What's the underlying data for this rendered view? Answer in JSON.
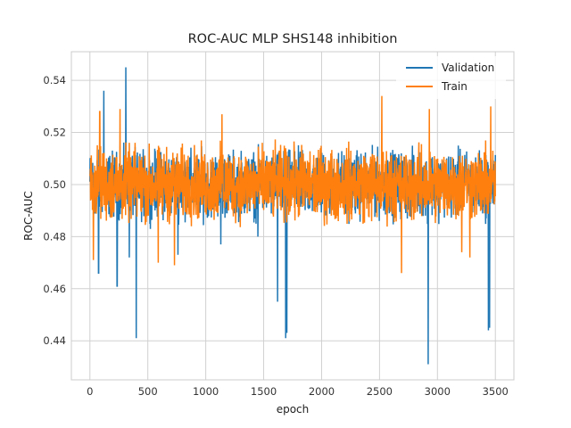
{
  "chart_data": {
    "type": "line",
    "title": "ROC-AUC MLP SHS148 inhibition",
    "xlabel": "epoch",
    "ylabel": "ROC-AUC",
    "xlim": [
      -160,
      3660
    ],
    "ylim": [
      0.425,
      0.551
    ],
    "x_ticks": [
      0,
      500,
      1000,
      1500,
      2000,
      2500,
      3000,
      3500
    ],
    "x_tick_labels": [
      "0",
      "500",
      "1000",
      "1500",
      "2000",
      "2500",
      "3000",
      "3500"
    ],
    "y_ticks": [
      0.44,
      0.46,
      0.48,
      0.5,
      0.52,
      0.54
    ],
    "y_tick_labels": [
      "0.44",
      "0.46",
      "0.48",
      "0.50",
      "0.52",
      "0.54"
    ],
    "grid": true,
    "legend_position": "top-right",
    "epochs": 3500,
    "series": [
      {
        "name": "Validation",
        "color": "#1f77b4",
        "x": [
          0,
          60,
          75,
          85,
          120,
          135,
          200,
          235,
          250,
          270,
          310,
          340,
          385,
          400,
          600,
          700,
          760,
          1000,
          1130,
          1300,
          1450,
          1600,
          1620,
          1640,
          1690,
          1700,
          1710,
          1800,
          2050,
          2200,
          2400,
          2600,
          2700,
          2850,
          2920,
          2935,
          2950,
          3000,
          3200,
          3400,
          3440,
          3450,
          3465,
          3500
        ],
        "values": [
          0.498,
          0.501,
          0.466,
          0.5,
          0.536,
          0.499,
          0.508,
          0.461,
          0.491,
          0.499,
          0.545,
          0.472,
          0.5,
          0.441,
          0.498,
          0.5,
          0.473,
          0.499,
          0.477,
          0.501,
          0.48,
          0.499,
          0.455,
          0.5,
          0.441,
          0.443,
          0.499,
          0.501,
          0.483,
          0.499,
          0.5,
          0.486,
          0.499,
          0.501,
          0.431,
          0.498,
          0.487,
          0.5,
          0.499,
          0.5,
          0.444,
          0.445,
          0.499,
          0.5
        ]
      },
      {
        "name": "Train",
        "color": "#ff7f0e",
        "x": [
          0,
          500,
          1000,
          1500,
          2000,
          2500,
          3000,
          3500
        ],
        "values": [
          0.5,
          0.5,
          0.5,
          0.5,
          0.5,
          0.5,
          0.5,
          0.5
        ],
        "band": [
          0.48,
          0.52
        ],
        "spikes_high": [
          {
            "x": 85,
            "y": 0.528
          },
          {
            "x": 260,
            "y": 0.529
          },
          {
            "x": 1140,
            "y": 0.527
          },
          {
            "x": 2520,
            "y": 0.534
          },
          {
            "x": 2930,
            "y": 0.529
          },
          {
            "x": 3460,
            "y": 0.53
          }
        ],
        "spikes_low": [
          {
            "x": 30,
            "y": 0.471
          },
          {
            "x": 590,
            "y": 0.47
          },
          {
            "x": 730,
            "y": 0.469
          },
          {
            "x": 2690,
            "y": 0.466
          },
          {
            "x": 3210,
            "y": 0.474
          },
          {
            "x": 3280,
            "y": 0.472
          }
        ]
      }
    ]
  }
}
